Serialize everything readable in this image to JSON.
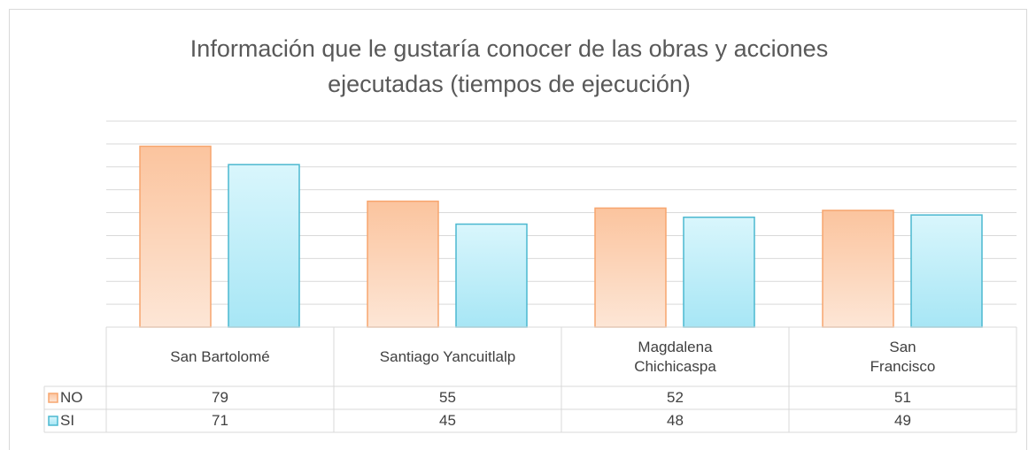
{
  "chart_data": {
    "type": "bar",
    "title": "Información que le gustaría conocer de las obras y acciones\nejecutadas (tiempos de ejecución)",
    "categories": [
      "San Bartolomé",
      "Santiago Yancuitlalp",
      "Magdalena\nChichicaspa",
      "San\nFrancisco"
    ],
    "series": [
      {
        "name": "NO",
        "color": "#f7a56e",
        "values": [
          79,
          55,
          52,
          51
        ]
      },
      {
        "name": "SI",
        "color": "#4bb8d0",
        "values": [
          71,
          45,
          48,
          49
        ]
      }
    ],
    "ylim": [
      0,
      90
    ],
    "yticks": [
      0,
      10,
      20,
      30,
      40,
      50,
      60,
      70,
      80,
      90
    ],
    "grid": true,
    "legend": "table"
  }
}
